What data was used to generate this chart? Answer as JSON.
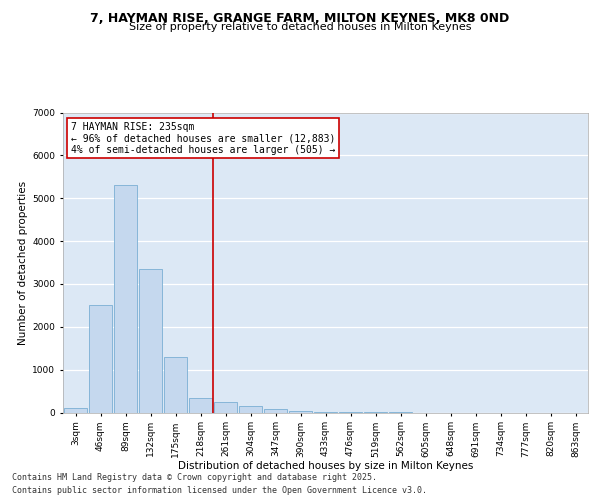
{
  "title_line1": "7, HAYMAN RISE, GRANGE FARM, MILTON KEYNES, MK8 0ND",
  "title_line2": "Size of property relative to detached houses in Milton Keynes",
  "xlabel": "Distribution of detached houses by size in Milton Keynes",
  "ylabel": "Number of detached properties",
  "categories": [
    "3sqm",
    "46sqm",
    "89sqm",
    "132sqm",
    "175sqm",
    "218sqm",
    "261sqm",
    "304sqm",
    "347sqm",
    "390sqm",
    "433sqm",
    "476sqm",
    "519sqm",
    "562sqm",
    "605sqm",
    "648sqm",
    "691sqm",
    "734sqm",
    "777sqm",
    "820sqm",
    "863sqm"
  ],
  "values": [
    100,
    2500,
    5300,
    3350,
    1300,
    350,
    250,
    150,
    80,
    30,
    10,
    5,
    2,
    1,
    0,
    0,
    0,
    0,
    0,
    0,
    0
  ],
  "bar_color": "#c5d8ee",
  "bar_edge_color": "#7aafd4",
  "vline_x_index": 5.5,
  "vline_color": "#cc0000",
  "annotation_text": "7 HAYMAN RISE: 235sqm\n← 96% of detached houses are smaller (12,883)\n4% of semi-detached houses are larger (505) →",
  "annotation_box_color": "#cc0000",
  "ylim": [
    0,
    7000
  ],
  "yticks": [
    0,
    1000,
    2000,
    3000,
    4000,
    5000,
    6000,
    7000
  ],
  "bg_color": "#dce8f5",
  "grid_color": "#ffffff",
  "footer_line1": "Contains HM Land Registry data © Crown copyright and database right 2025.",
  "footer_line2": "Contains public sector information licensed under the Open Government Licence v3.0.",
  "title_fontsize": 9,
  "subtitle_fontsize": 8,
  "axis_label_fontsize": 7.5,
  "tick_fontsize": 6.5,
  "annotation_fontsize": 7,
  "footer_fontsize": 6
}
